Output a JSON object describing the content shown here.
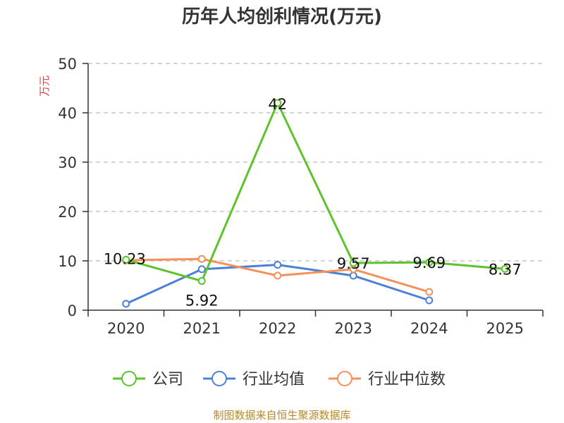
{
  "title": "历年人均创利情况(万元)",
  "source": "制图数据来自恒生聚源数据库",
  "colors": {
    "company": "#5cc42a",
    "industry_avg": "#4a80d8",
    "industry_median": "#f5905a",
    "grid": "#bbbbbb",
    "axis": "#333333"
  },
  "chart_data": {
    "type": "line",
    "title": "历年人均创利情况(万元)",
    "ylabel": "万元",
    "xlabel": "",
    "ylim": [
      0,
      50
    ],
    "yticks": [
      0,
      10,
      20,
      30,
      40,
      50
    ],
    "categories": [
      "2020",
      "2021",
      "2022",
      "2023",
      "2024",
      "2025"
    ],
    "grid": true,
    "legend_position": "bottom",
    "series": [
      {
        "name": "公司",
        "key": "company",
        "values": [
          10.23,
          5.92,
          42,
          9.57,
          9.69,
          8.37
        ],
        "labels": [
          "10.23",
          "5.92",
          "42",
          "9.57",
          "9.69",
          "8.37"
        ]
      },
      {
        "name": "行业均值",
        "key": "industry_avg",
        "values": [
          1.3,
          8.3,
          9.2,
          7.0,
          2.0,
          null
        ]
      },
      {
        "name": "行业中位数",
        "key": "industry_median",
        "values": [
          10.1,
          10.4,
          7.0,
          8.3,
          3.7,
          null
        ]
      }
    ]
  }
}
